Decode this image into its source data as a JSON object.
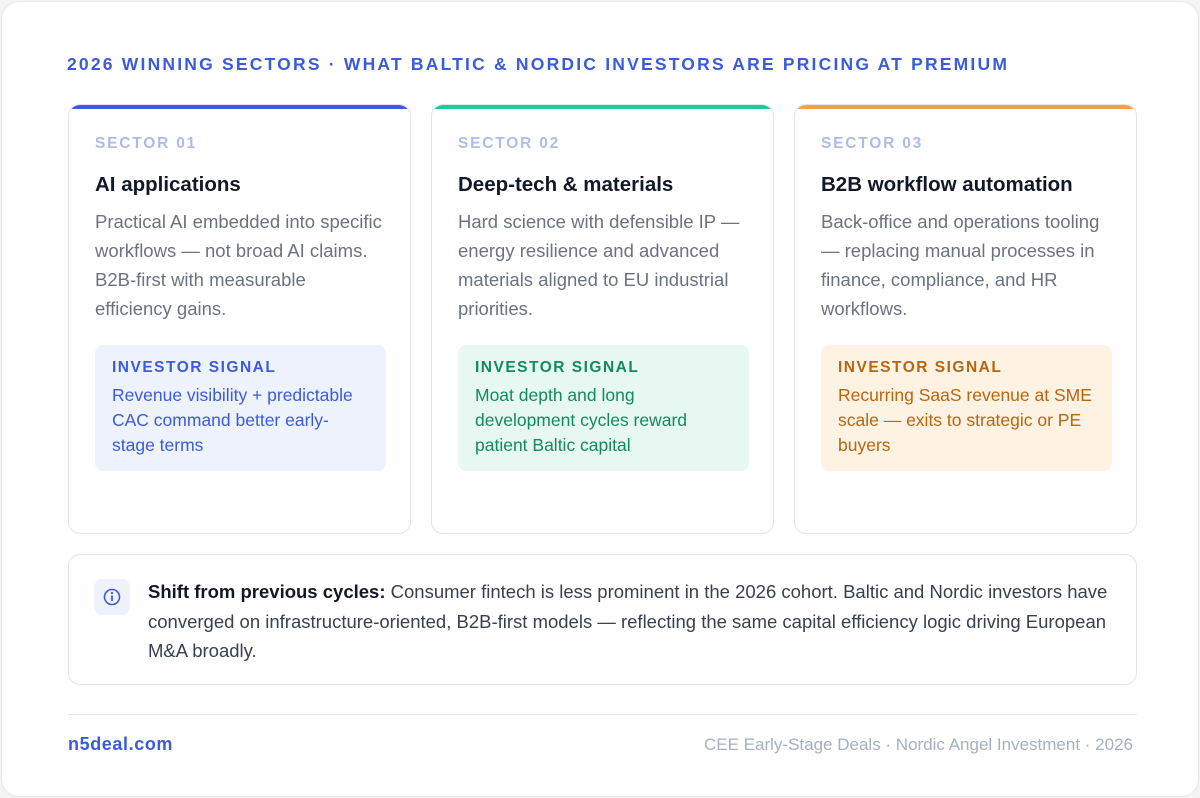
{
  "header": {
    "title": "2026 WINNING SECTORS · WHAT BALTIC & NORDIC INVESTORS ARE PRICING AT PREMIUM"
  },
  "sectors": [
    {
      "label": "SECTOR 01",
      "title": "AI applications",
      "body": "Practical AI embedded into specific workflows — not broad AI claims. B2B-first with measurable efficiency gains.",
      "signal_label": "INVESTOR SIGNAL",
      "signal": "Revenue visibility + predictable CAC command better early-stage terms"
    },
    {
      "label": "SECTOR 02",
      "title": "Deep-tech & materials",
      "body": "Hard science with defensible IP — energy resilience and advanced materials aligned to EU industrial priorities.",
      "signal_label": "INVESTOR SIGNAL",
      "signal": "Moat depth and long development cycles reward patient Baltic capital"
    },
    {
      "label": "SECTOR 03",
      "title": "B2B workflow automation",
      "body": "Back-office and operations tooling — replacing manual processes in finance, compliance, and HR workflows.",
      "signal_label": "INVESTOR SIGNAL",
      "signal": "Recurring SaaS revenue at SME scale — exits to strategic or PE buyers"
    }
  ],
  "note": {
    "lead": "Shift from previous cycles:",
    "text": "Consumer fintech is less prominent in the 2026 cohort. Baltic and Nordic investors have converged on infrastructure-oriented, B2B-first models — reflecting the same capital efficiency logic driving European M&A broadly."
  },
  "footer": {
    "site": "n5deal.com",
    "meta": "CEE Early-Stage Deals · Nordic Angel Investment · 2026"
  }
}
